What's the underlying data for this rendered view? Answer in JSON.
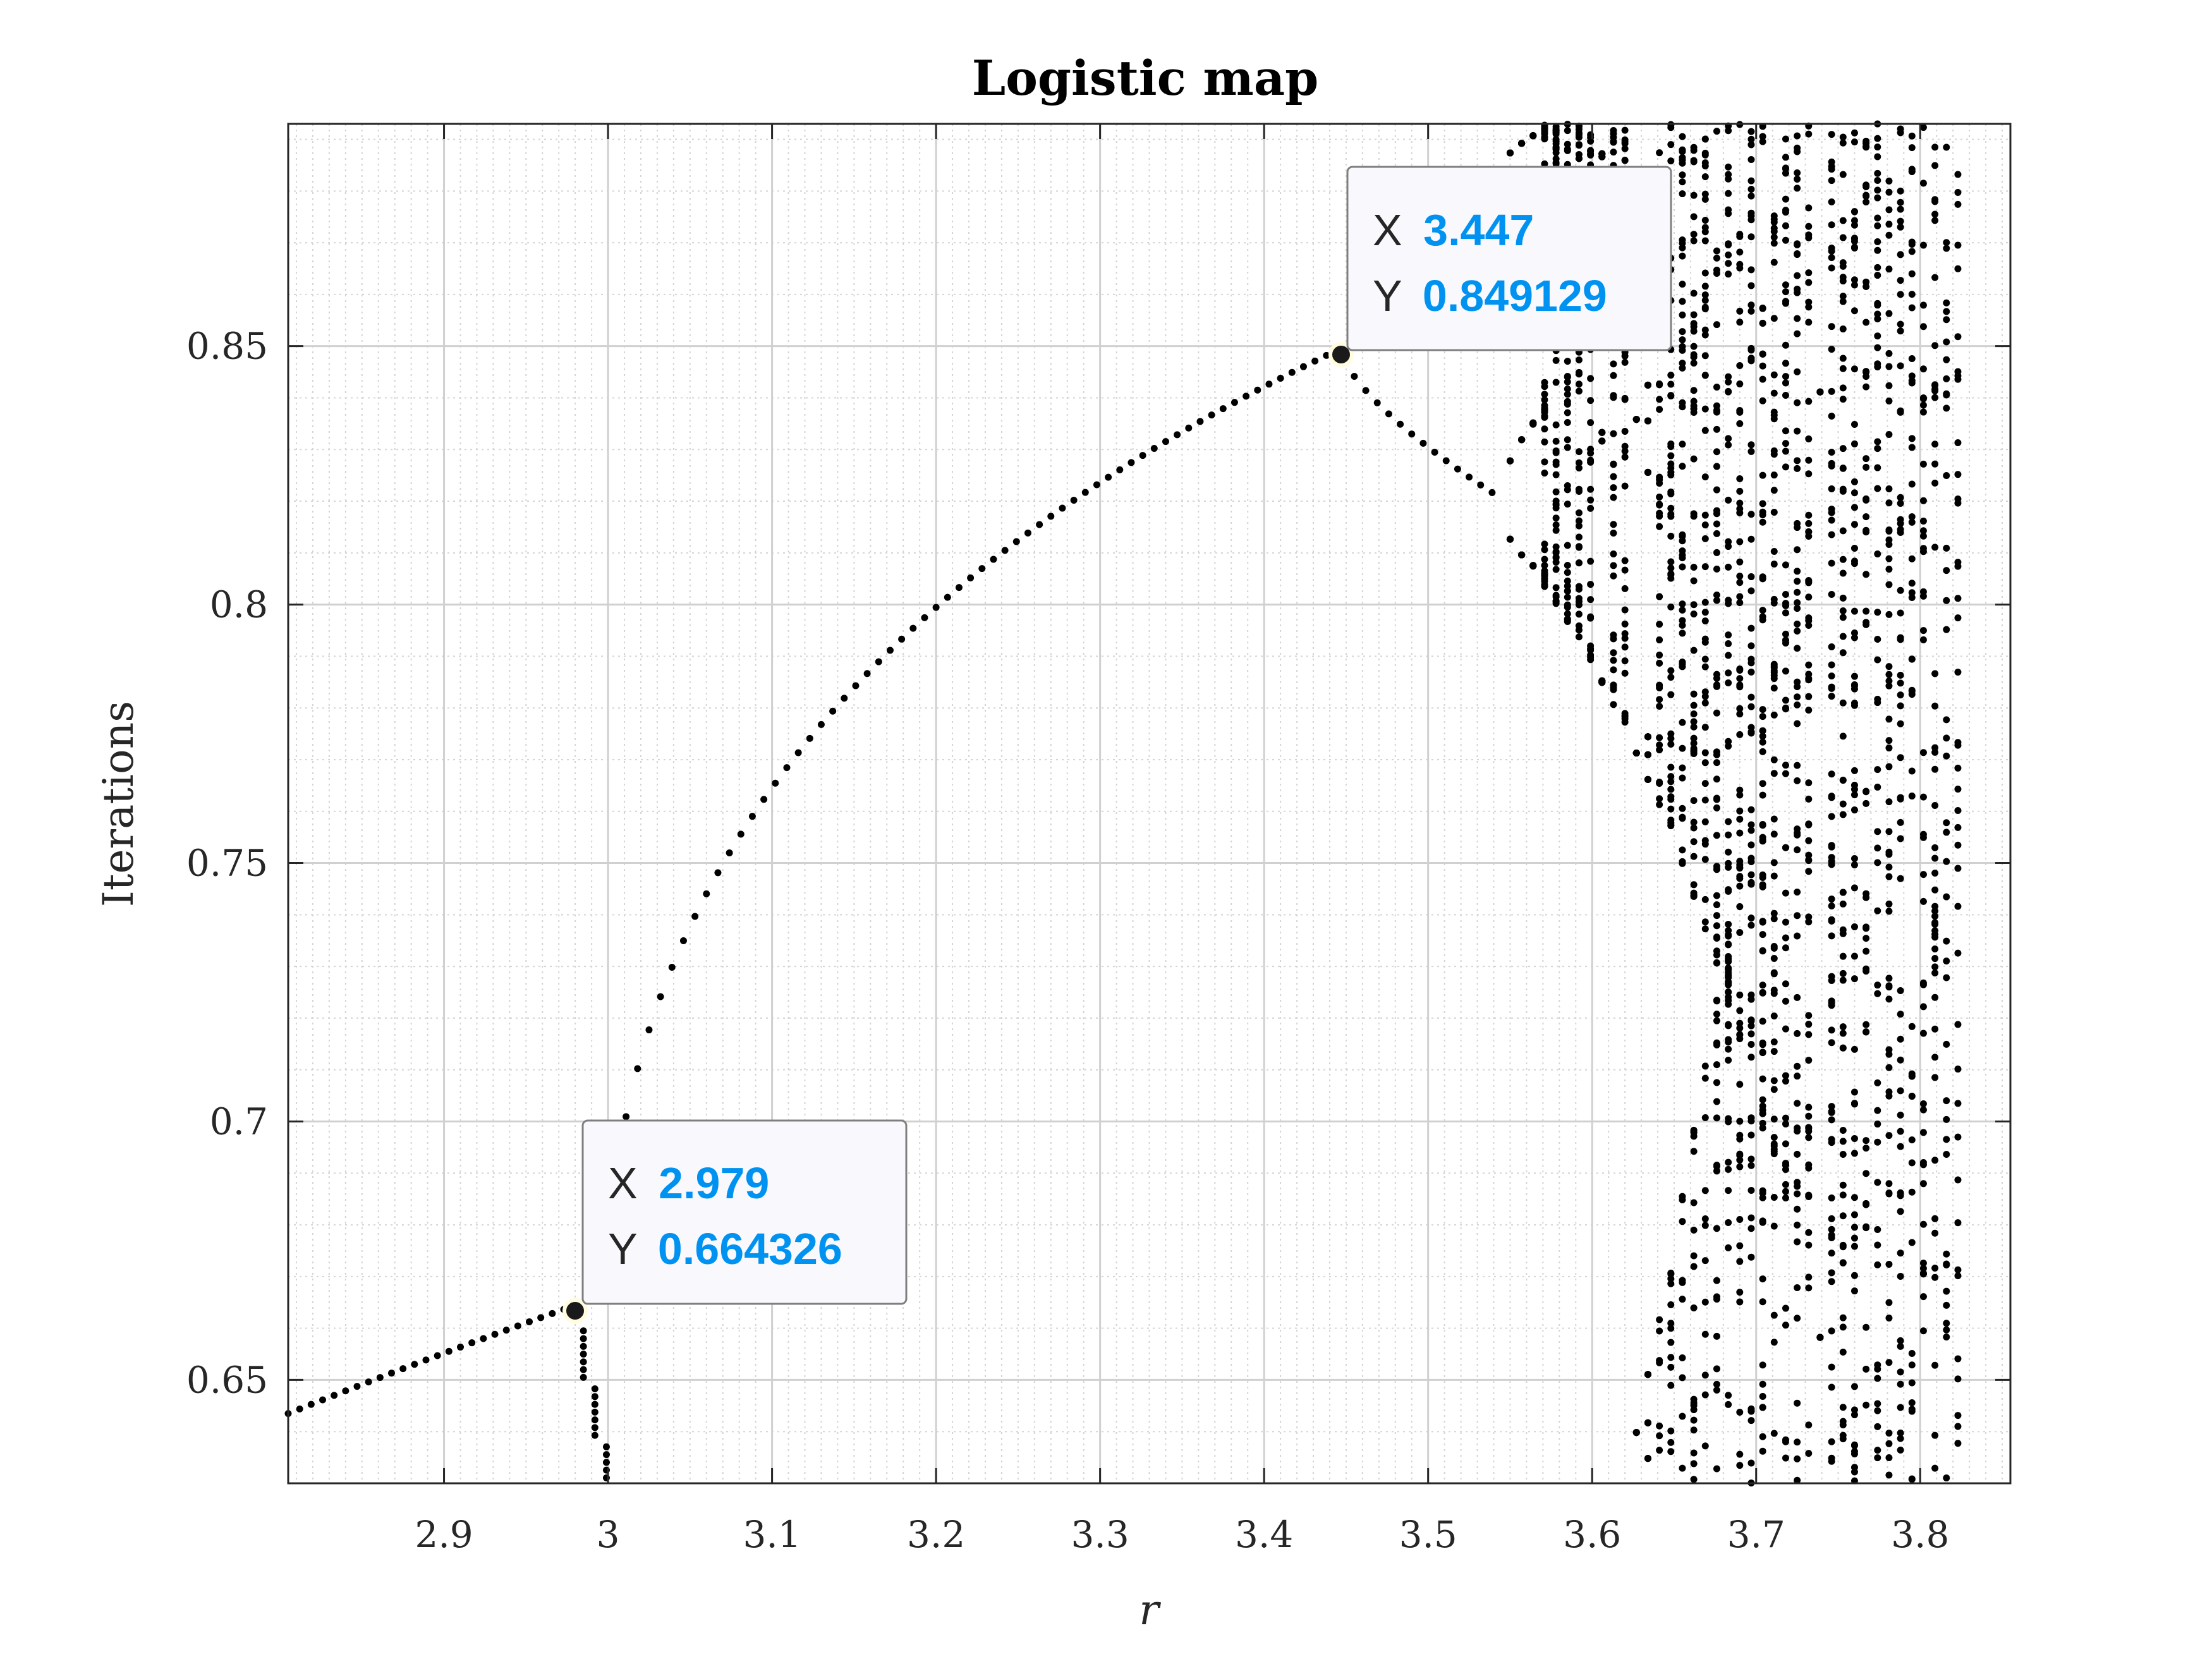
{
  "chart_data": {
    "type": "scatter",
    "title": "Logistic map",
    "xlabel": "r",
    "ylabel": "Iterations",
    "xlim": [
      2.805,
      3.855
    ],
    "ylim": [
      0.63,
      0.893
    ],
    "xticks": [
      2.9,
      3.0,
      3.1,
      3.2,
      3.3,
      3.4,
      3.5,
      3.6,
      3.7,
      3.8
    ],
    "xtick_labels": [
      "2.9",
      "3",
      "3.1",
      "3.2",
      "3.3",
      "3.4",
      "3.5",
      "3.6",
      "3.7",
      "3.8"
    ],
    "yticks": [
      0.65,
      0.7,
      0.75,
      0.8,
      0.85
    ],
    "ytick_labels": [
      "0.65",
      "0.7",
      "0.75",
      "0.8",
      "0.85"
    ],
    "grid": true,
    "minor_grid": true,
    "marker_color": "#000000",
    "stable_branch": {
      "formula": "x = 1 - 1/r (fixed point)",
      "r_start": 2.805,
      "r_end": 2.979,
      "r_step": 0.007
    },
    "upper_branch": {
      "description": "upper period-2 branch",
      "r_start": 3.011,
      "r_end": 3.447,
      "r_step": 0.007
    },
    "lower_branch": {
      "description": "lower period-4 sub-branch",
      "r_start": 3.455,
      "r_end": 3.544,
      "r_step": 0.007
    },
    "chaos_region": {
      "r_start": 3.55,
      "r_end": 3.83,
      "r_step": 0.007
    },
    "datatips": [
      {
        "x_label": "X",
        "x_value": "3.447",
        "y_label": "Y",
        "y_value": "0.849129",
        "x": 3.447,
        "y": 0.849129
      },
      {
        "x_label": "X",
        "x_value": "2.979",
        "y_label": "Y",
        "y_value": "0.664326",
        "x": 2.979,
        "y": 0.664326
      }
    ],
    "datatip_value_color": "#0092f0",
    "datatip_label_color": "#262626"
  }
}
